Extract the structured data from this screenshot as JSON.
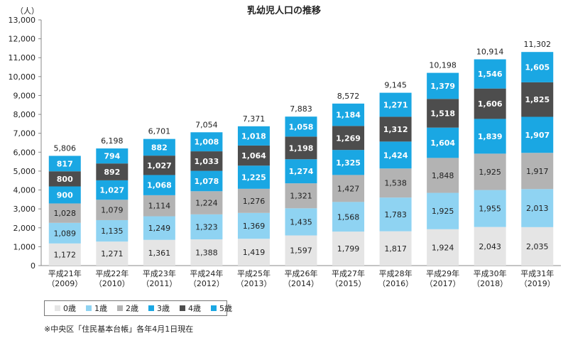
{
  "chart_data": {
    "type": "bar",
    "stacked": true,
    "title": "乳幼児人口の推移",
    "ylabel": "（人）",
    "ylim": [
      0,
      13000
    ],
    "yticks": [
      "0",
      "1,000",
      "2,000",
      "3,000",
      "4,000",
      "5,000",
      "6,000",
      "7,000",
      "8,000",
      "9,000",
      "10,000",
      "11,000",
      "12,000",
      "13,000"
    ],
    "categories": [
      [
        "平成21年",
        "（2009）"
      ],
      [
        "平成22年",
        "（2010）"
      ],
      [
        "平成23年",
        "（2011）"
      ],
      [
        "平成24年",
        "（2012）"
      ],
      [
        "平成25年",
        "（2013）"
      ],
      [
        "平成26年",
        "（2014）"
      ],
      [
        "平成27年",
        "（2015）"
      ],
      [
        "平成28年",
        "（2016）"
      ],
      [
        "平成29年",
        "（2017）"
      ],
      [
        "平成30年",
        "（2018）"
      ],
      [
        "平成31年",
        "（2019）"
      ]
    ],
    "series": [
      {
        "name": "0歳",
        "color": "#e5e5e5",
        "label_color": "#222222",
        "bold": false,
        "values": [
          1172,
          1271,
          1361,
          1388,
          1419,
          1597,
          1799,
          1817,
          1924,
          2043,
          2035
        ]
      },
      {
        "name": "1歳",
        "color": "#8fd3f2",
        "label_color": "#222222",
        "bold": false,
        "values": [
          1089,
          1135,
          1249,
          1323,
          1369,
          1435,
          1568,
          1783,
          1925,
          1955,
          2013
        ]
      },
      {
        "name": "2歳",
        "color": "#b3b3b3",
        "label_color": "#222222",
        "bold": false,
        "values": [
          1028,
          1079,
          1114,
          1224,
          1276,
          1321,
          1427,
          1538,
          1848,
          1925,
          1917
        ]
      },
      {
        "name": "3歳",
        "color": "#1aa7e3",
        "label_color": "#ffffff",
        "bold": true,
        "values": [
          900,
          1027,
          1068,
          1078,
          1225,
          1274,
          1325,
          1424,
          1604,
          1839,
          1907
        ]
      },
      {
        "name": "4歳",
        "color": "#4d4d4d",
        "label_color": "#ffffff",
        "bold": true,
        "values": [
          800,
          892,
          1027,
          1033,
          1064,
          1198,
          1269,
          1312,
          1518,
          1606,
          1825
        ]
      },
      {
        "name": "5歳",
        "color": "#1aa7e3",
        "label_color": "#ffffff",
        "bold": true,
        "values": [
          817,
          794,
          882,
          1008,
          1018,
          1058,
          1184,
          1271,
          1379,
          1546,
          1605
        ]
      }
    ],
    "totals": [
      5806,
      6198,
      6701,
      7054,
      7371,
      7883,
      8572,
      9145,
      10198,
      10914,
      11302
    ],
    "legend_position": "bottom-left",
    "grid": false
  },
  "note": "※中央区「住民基本台帳」各年4月1日現在"
}
